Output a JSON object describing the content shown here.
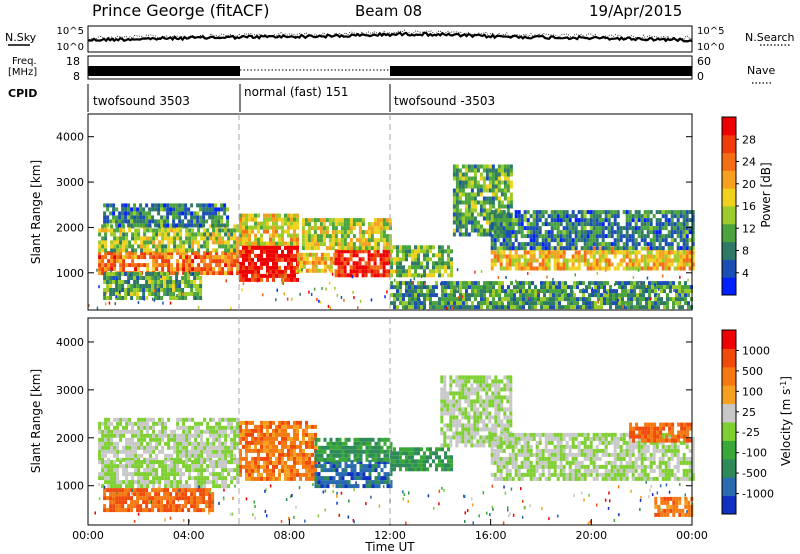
{
  "header": {
    "station": "Prince George (fitACF)",
    "beam": "Beam 08",
    "date": "19/Apr/2015"
  },
  "labels": {
    "nsky": "N.Sky",
    "nsearch": "N.Search",
    "freq_line1": "Freq.",
    "freq_line2": "[MHz]",
    "nave": "Nave",
    "cpid": "CPID"
  },
  "noise_axis": {
    "left_top": "10^5",
    "left_bottom": "10^0",
    "right_top": "10^5",
    "right_bottom": "10^0"
  },
  "freq_axis": {
    "left_top": "18",
    "left_bottom": "8",
    "right_top": "60",
    "right_bottom": "0"
  },
  "cpid_segments": [
    {
      "label": "twofsound 3503",
      "start_h": 0,
      "end_h": 6
    },
    {
      "label": "normal (fast) 151",
      "start_h": 6,
      "end_h": 12
    },
    {
      "label": "twofsound -3503",
      "start_h": 12,
      "end_h": 24
    }
  ],
  "chart_data": [
    {
      "type": "heatmap",
      "panel": "power",
      "xlabel": "",
      "ylabel": "Slant Range [km]",
      "x_range_h": [
        0,
        24
      ],
      "ylim": [
        180,
        4500
      ],
      "yticks": [
        "1000",
        "2000",
        "3000",
        "4000"
      ],
      "colorbar": {
        "label": "Power [dB]",
        "ticks": [
          "4",
          "8",
          "12",
          "16",
          "20",
          "24",
          "28"
        ],
        "colors": [
          "#0020ff",
          "#1c4fb3",
          "#2f7a66",
          "#4aa33c",
          "#9ccc2a",
          "#f0d21e",
          "#f5a01e",
          "#f56e14",
          "#f03c0a",
          "#ee0000"
        ]
      },
      "bands": [
        {
          "t0": 0.4,
          "t1": 6.0,
          "r0": 950,
          "r1": 1450,
          "level": 0.75
        },
        {
          "t0": 0.4,
          "t1": 6.0,
          "r0": 1450,
          "r1": 2000,
          "level": 0.45
        },
        {
          "t0": 0.6,
          "t1": 5.5,
          "r0": 2000,
          "r1": 2500,
          "level": 0.25
        },
        {
          "t0": 0.6,
          "t1": 4.5,
          "r0": 400,
          "r1": 950,
          "level": 0.35
        },
        {
          "t0": 6.0,
          "t1": 8.3,
          "r0": 800,
          "r1": 1600,
          "level": 0.95
        },
        {
          "t0": 6.0,
          "t1": 8.3,
          "r0": 1600,
          "r1": 2300,
          "level": 0.55
        },
        {
          "t0": 8.3,
          "t1": 9.8,
          "r0": 1000,
          "r1": 1400,
          "level": 0.6
        },
        {
          "t0": 9.8,
          "t1": 12.0,
          "r0": 900,
          "r1": 1500,
          "level": 0.92
        },
        {
          "t0": 8.5,
          "t1": 12.0,
          "r0": 1500,
          "r1": 2200,
          "level": 0.5
        },
        {
          "t0": 12.0,
          "t1": 14.5,
          "r0": 900,
          "r1": 1600,
          "level": 0.4
        },
        {
          "t0": 14.5,
          "t1": 16.8,
          "r0": 1800,
          "r1": 3300,
          "level": 0.35
        },
        {
          "t0": 16.0,
          "t1": 24.0,
          "r0": 1050,
          "r1": 1500,
          "level": 0.6
        },
        {
          "t0": 16.0,
          "t1": 24.0,
          "r0": 1500,
          "r1": 2300,
          "level": 0.25
        },
        {
          "t0": 12.0,
          "t1": 24.0,
          "r0": 200,
          "r1": 800,
          "level": 0.3
        }
      ]
    },
    {
      "type": "heatmap",
      "panel": "velocity",
      "xlabel": "Time UT",
      "ylabel": "Slant Range [km]",
      "x_range_h": [
        0,
        24
      ],
      "ylim": [
        180,
        4500
      ],
      "yticks": [
        "1000",
        "2000",
        "3000",
        "4000"
      ],
      "xticks": [
        "00:00",
        "04:00",
        "08:00",
        "12:00",
        "16:00",
        "20:00",
        "00:00"
      ],
      "colorbar": {
        "label": "Velocity [m s-1]",
        "ticks": [
          "1000",
          "500",
          "100",
          "25",
          "-25",
          "-100",
          "-500",
          "-1000"
        ],
        "colors": [
          "#1030c0",
          "#2a6ab0",
          "#2f8a5a",
          "#3aa838",
          "#7dd030",
          "#c8c8c8",
          "#f5a020",
          "#f57810",
          "#f04a0a",
          "#ee0000"
        ]
      },
      "bands": [
        {
          "t0": 0.4,
          "t1": 6.0,
          "r0": 1500,
          "r1": 2400,
          "level": 0.5
        },
        {
          "t0": 0.4,
          "t1": 6.0,
          "r0": 950,
          "r1": 1500,
          "level": 0.5
        },
        {
          "t0": 0.6,
          "t1": 5.0,
          "r0": 450,
          "r1": 950,
          "level": 0.8
        },
        {
          "t0": 6.0,
          "t1": 9.0,
          "r0": 1100,
          "r1": 2300,
          "level": 0.75
        },
        {
          "t0": 9.0,
          "t1": 12.0,
          "r0": 950,
          "r1": 1500,
          "level": 0.15
        },
        {
          "t0": 9.0,
          "t1": 12.0,
          "r0": 1500,
          "r1": 2000,
          "level": 0.3
        },
        {
          "t0": 12.0,
          "t1": 14.5,
          "r0": 1300,
          "r1": 1800,
          "level": 0.3
        },
        {
          "t0": 14.0,
          "t1": 16.8,
          "r0": 1800,
          "r1": 3300,
          "level": 0.5
        },
        {
          "t0": 16.0,
          "t1": 24.0,
          "r0": 1100,
          "r1": 2100,
          "level": 0.5
        },
        {
          "t0": 21.5,
          "t1": 24.0,
          "r0": 1900,
          "r1": 2300,
          "level": 0.8
        },
        {
          "t0": 22.5,
          "t1": 24.0,
          "r0": 350,
          "r1": 750,
          "level": 0.75
        }
      ]
    }
  ]
}
